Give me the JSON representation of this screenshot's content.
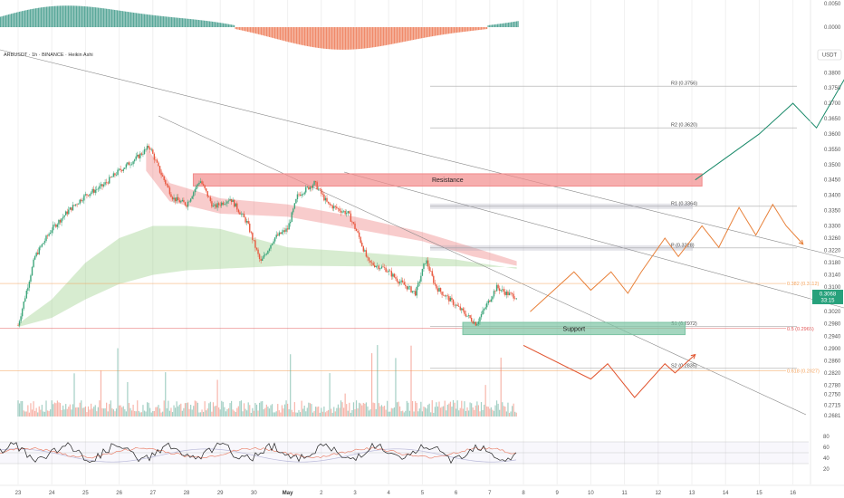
{
  "chart_data": {
    "type": "candlestick",
    "title": "ARBUSDT · 1h · BINANCE · Heikin Ashi",
    "quote_unit": "USDT",
    "price_ylim": [
      0.266,
      0.386
    ],
    "price_ticks": [
      0.38,
      0.375,
      0.37,
      0.365,
      0.36,
      0.355,
      0.35,
      0.345,
      0.34,
      0.335,
      0.33,
      0.326,
      0.322,
      0.318,
      0.314,
      0.31,
      0.306,
      0.302,
      0.298,
      0.294,
      0.29,
      0.286,
      0.282,
      0.278,
      0.275,
      0.2715,
      0.2681
    ],
    "osc_ticks": [
      "0.0050",
      "0.0000"
    ],
    "rsi_ticks": [
      80,
      60,
      40,
      20
    ],
    "x_ticks": [
      "23",
      "24",
      "25",
      "26",
      "27",
      "28",
      "29",
      "30",
      "May",
      "2",
      "3",
      "4",
      "5",
      "6",
      "7",
      "8",
      "9",
      "10",
      "11",
      "12",
      "13",
      "14",
      "15",
      "16"
    ],
    "last_price": {
      "value": 0.3068,
      "text": "0.3068",
      "countdown": "33:15"
    },
    "price_points": [
      {
        "day": 0,
        "price": 0.2975
      },
      {
        "day": 0.5,
        "price": 0.32
      },
      {
        "day": 1.0,
        "price": 0.329
      },
      {
        "day": 1.5,
        "price": 0.335
      },
      {
        "day": 2.0,
        "price": 0.34
      },
      {
        "day": 2.5,
        "price": 0.343
      },
      {
        "day": 3.0,
        "price": 0.348
      },
      {
        "day": 3.5,
        "price": 0.352
      },
      {
        "day": 3.9,
        "price": 0.356
      },
      {
        "day": 4.2,
        "price": 0.348
      },
      {
        "day": 4.6,
        "price": 0.339
      },
      {
        "day": 5.0,
        "price": 0.337
      },
      {
        "day": 5.4,
        "price": 0.345
      },
      {
        "day": 5.8,
        "price": 0.336
      },
      {
        "day": 6.3,
        "price": 0.339
      },
      {
        "day": 6.8,
        "price": 0.331
      },
      {
        "day": 7.2,
        "price": 0.318
      },
      {
        "day": 7.6,
        "price": 0.326
      },
      {
        "day": 8.0,
        "price": 0.329
      },
      {
        "day": 8.3,
        "price": 0.34
      },
      {
        "day": 8.8,
        "price": 0.344
      },
      {
        "day": 9.2,
        "price": 0.337
      },
      {
        "day": 9.8,
        "price": 0.334
      },
      {
        "day": 10.1,
        "price": 0.327
      },
      {
        "day": 10.4,
        "price": 0.318
      },
      {
        "day": 10.9,
        "price": 0.316
      },
      {
        "day": 11.3,
        "price": 0.312
      },
      {
        "day": 11.8,
        "price": 0.308
      },
      {
        "day": 12.1,
        "price": 0.319
      },
      {
        "day": 12.4,
        "price": 0.31
      },
      {
        "day": 12.9,
        "price": 0.305
      },
      {
        "day": 13.3,
        "price": 0.301
      },
      {
        "day": 13.6,
        "price": 0.298
      },
      {
        "day": 13.9,
        "price": 0.304
      },
      {
        "day": 14.2,
        "price": 0.31
      },
      {
        "day": 14.5,
        "price": 0.308
      },
      {
        "day": 14.8,
        "price": 0.3068
      }
    ],
    "horizontal_levels": [
      {
        "name": "R3",
        "label": "R3 (0.3756)",
        "value": 0.3756,
        "color": "#aaaaaa"
      },
      {
        "name": "R2",
        "label": "R2 (0.3620)",
        "value": 0.362,
        "color": "#aaaaaa"
      },
      {
        "name": "R1",
        "label": "R1 (0.3364)",
        "value": 0.3364,
        "color": "#aaaaaa"
      },
      {
        "name": "P",
        "label": "P (0.3228)",
        "value": 0.3228,
        "color": "#aaaaaa"
      },
      {
        "name": "S1",
        "label": "S1 (0.2972)",
        "value": 0.2972,
        "color": "#aaaaaa"
      },
      {
        "name": "S2",
        "label": "S2 (0.2835)",
        "value": 0.2835,
        "color": "#aaaaaa"
      }
    ],
    "fib_levels": [
      {
        "label": "0.382 (0.3112)",
        "value": 0.3112,
        "color": "#f5a35c"
      },
      {
        "label": "0.5 (0.2965)",
        "value": 0.2965,
        "color": "#e25555"
      },
      {
        "label": "0.618 (0.2827)",
        "value": 0.2827,
        "color": "#f5a35c"
      }
    ],
    "zones": [
      {
        "label": "Resistance",
        "low": 0.343,
        "high": 0.347,
        "start_day": 5.2,
        "end_day": 20.3,
        "color": "#f28b8b"
      },
      {
        "label": "Support",
        "low": 0.2945,
        "high": 0.2985,
        "start_day": 13.2,
        "end_day": 19.8,
        "color": "#7dc4a4"
      }
    ],
    "projection_up": {
      "color": "#e8813a",
      "points": [
        [
          15.2,
          0.302
        ],
        [
          16.5,
          0.315
        ],
        [
          17.0,
          0.309
        ],
        [
          17.6,
          0.315
        ],
        [
          18.1,
          0.308
        ],
        [
          18.5,
          0.315
        ],
        [
          19.2,
          0.326
        ],
        [
          19.6,
          0.32
        ],
        [
          20.3,
          0.33
        ],
        [
          20.8,
          0.323
        ],
        [
          21.4,
          0.336
        ],
        [
          21.9,
          0.327
        ],
        [
          22.4,
          0.337
        ],
        [
          22.8,
          0.33
        ],
        [
          23.3,
          0.324
        ]
      ]
    },
    "projection_down": {
      "color": "#e0502a",
      "points": [
        [
          15.0,
          0.291
        ],
        [
          17.0,
          0.28
        ],
        [
          17.5,
          0.285
        ],
        [
          18.3,
          0.274
        ],
        [
          19.2,
          0.285
        ],
        [
          19.5,
          0.282
        ],
        [
          20.1,
          0.288
        ]
      ]
    },
    "projection_breakout": {
      "color": "#1a8a6a",
      "points": [
        [
          20.1,
          0.345
        ],
        [
          22.0,
          0.36
        ],
        [
          23.0,
          0.37
        ],
        [
          23.7,
          0.362
        ],
        [
          24.9,
          0.385
        ]
      ]
    }
  }
}
